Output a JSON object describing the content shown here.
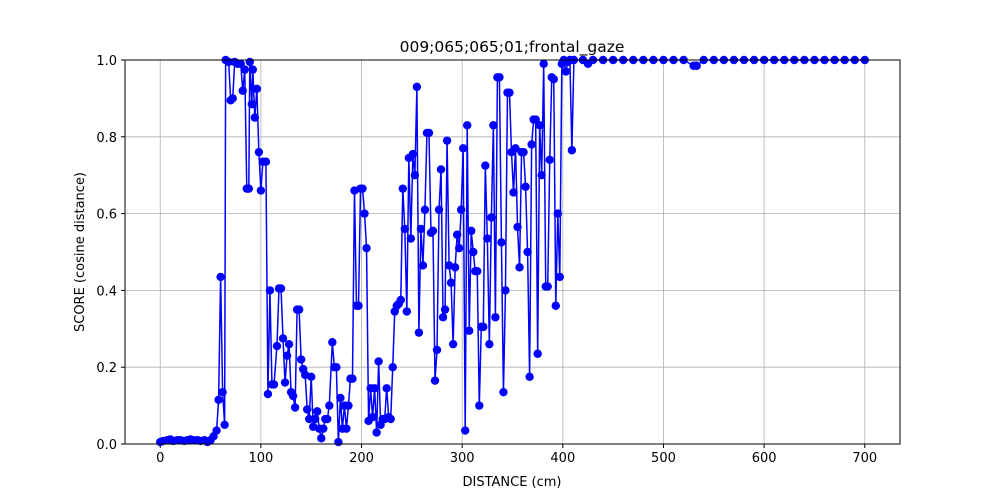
{
  "chart_data": {
    "type": "line",
    "title": "009;065;065;01;frontal_gaze",
    "xlabel": "DISTANCE (cm)",
    "ylabel": "SCORE (cosine distance)",
    "color": "#0000ff",
    "grid": true,
    "xlim": [
      -35,
      735
    ],
    "ylim": [
      0,
      1
    ],
    "xticks": [
      0,
      100,
      200,
      300,
      400,
      500,
      600,
      700
    ],
    "yticks": [
      {
        "value": 0,
        "label": "0.0"
      },
      0.2,
      0.4,
      0.6,
      0.8,
      {
        "value": 1,
        "label": "1.0"
      }
    ],
    "x": [
      0,
      3,
      7,
      10,
      13,
      17,
      20,
      24,
      27,
      30,
      33,
      37,
      40,
      44,
      47,
      50,
      53,
      56,
      58,
      60,
      62,
      64,
      65,
      68,
      70,
      72,
      74,
      77,
      80,
      82,
      84,
      86,
      88,
      89,
      91,
      92,
      94,
      96,
      98,
      100,
      102,
      105,
      107,
      109,
      111,
      113,
      116,
      118,
      120,
      122,
      124,
      126,
      128,
      130,
      132,
      134,
      136,
      138,
      140,
      142,
      144,
      146,
      148,
      150,
      152,
      154,
      156,
      158,
      160,
      162,
      164,
      166,
      168,
      171,
      173,
      175,
      177,
      179,
      181,
      183,
      185,
      187,
      189,
      191,
      193,
      195,
      197,
      199,
      201,
      203,
      205,
      207,
      209,
      211,
      213,
      215,
      217,
      219,
      221,
      223,
      225,
      227,
      229,
      231,
      233,
      235,
      237,
      239,
      241,
      243,
      245,
      247,
      249,
      251,
      253,
      255,
      257,
      259,
      261,
      263,
      265,
      267,
      269,
      271,
      273,
      275,
      277,
      279,
      281,
      283,
      285,
      287,
      289,
      291,
      293,
      295,
      297,
      299,
      301,
      303,
      305,
      307,
      309,
      311,
      313,
      315,
      317,
      319,
      321,
      323,
      325,
      327,
      329,
      331,
      333,
      335,
      337,
      339,
      341,
      343,
      345,
      347,
      349,
      351,
      353,
      355,
      357,
      359,
      361,
      363,
      365,
      367,
      369,
      371,
      373,
      375,
      377,
      379,
      381,
      383,
      385,
      387,
      389,
      391,
      393,
      395,
      397,
      399,
      401,
      403,
      405,
      407,
      409,
      411,
      420,
      425,
      430,
      440,
      450,
      460,
      470,
      480,
      490,
      500,
      510,
      520,
      530,
      533,
      540,
      550,
      560,
      570,
      580,
      590,
      600,
      610,
      620,
      630,
      640,
      650,
      660,
      670,
      680,
      690,
      700
    ],
    "values": [
      0.005,
      0.008,
      0.01,
      0.012,
      0.008,
      0.01,
      0.01,
      0.008,
      0.01,
      0.012,
      0.01,
      0.01,
      0.008,
      0.01,
      0.005,
      0.01,
      0.02,
      0.035,
      0.115,
      0.435,
      0.135,
      0.05,
      1.0,
      0.995,
      0.895,
      0.9,
      0.995,
      0.99,
      0.99,
      0.92,
      0.975,
      0.665,
      0.665,
      0.995,
      0.885,
      0.975,
      0.85,
      0.925,
      0.76,
      0.66,
      0.735,
      0.735,
      0.13,
      0.4,
      0.155,
      0.155,
      0.255,
      0.405,
      0.405,
      0.275,
      0.16,
      0.23,
      0.26,
      0.135,
      0.125,
      0.095,
      0.35,
      0.35,
      0.22,
      0.195,
      0.18,
      0.09,
      0.065,
      0.175,
      0.045,
      0.065,
      0.085,
      0.04,
      0.015,
      0.04,
      0.065,
      0.065,
      0.1,
      0.265,
      0.2,
      0.2,
      0.005,
      0.12,
      0.04,
      0.1,
      0.04,
      0.1,
      0.17,
      0.17,
      0.66,
      0.36,
      0.36,
      0.665,
      0.665,
      0.6,
      0.51,
      0.06,
      0.145,
      0.07,
      0.145,
      0.03,
      0.215,
      0.05,
      0.065,
      0.065,
      0.145,
      0.07,
      0.065,
      0.2,
      0.345,
      0.36,
      0.365,
      0.375,
      0.665,
      0.56,
      0.345,
      0.745,
      0.535,
      0.755,
      0.7,
      0.93,
      0.29,
      0.56,
      0.465,
      0.61,
      0.81,
      0.81,
      0.55,
      0.555,
      0.165,
      0.245,
      0.61,
      0.715,
      0.33,
      0.35,
      0.79,
      0.465,
      0.42,
      0.26,
      0.46,
      0.545,
      0.51,
      0.61,
      0.77,
      0.035,
      0.83,
      0.295,
      0.555,
      0.5,
      0.45,
      0.45,
      0.1,
      0.305,
      0.305,
      0.725,
      0.535,
      0.26,
      0.59,
      0.83,
      0.33,
      0.955,
      0.955,
      0.525,
      0.135,
      0.4,
      0.915,
      0.915,
      0.76,
      0.655,
      0.77,
      0.565,
      0.46,
      0.76,
      0.76,
      0.67,
      0.5,
      0.175,
      0.78,
      0.845,
      0.845,
      0.235,
      0.83,
      0.7,
      0.99,
      0.41,
      0.41,
      0.74,
      0.955,
      0.95,
      0.36,
      0.6,
      0.435,
      0.99,
      1.0,
      0.97,
      0.995,
      1.0,
      0.765,
      1.0,
      1.0,
      0.99,
      1.0,
      1.0,
      1.0,
      1.0,
      1.0,
      1.0,
      1.0,
      1.0,
      1.0,
      1.0,
      0.985,
      0.985,
      1.0,
      1.0,
      1.0,
      1.0,
      1.0,
      1.0,
      1.0,
      1.0,
      1.0,
      1.0,
      1.0,
      1.0,
      1.0,
      1.0,
      1.0,
      1.0,
      1.0
    ]
  }
}
